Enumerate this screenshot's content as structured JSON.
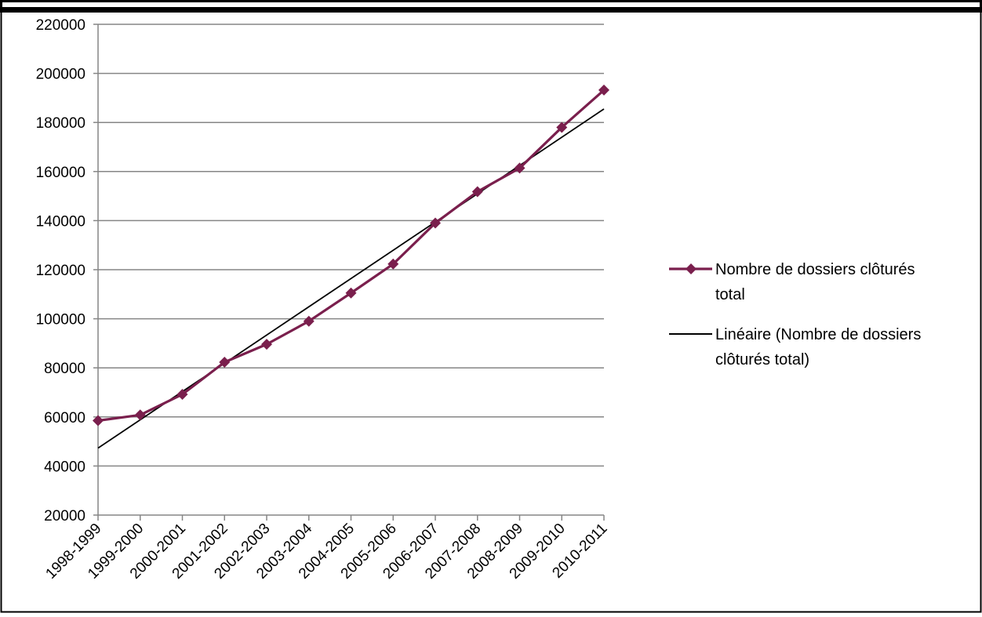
{
  "chart_data": {
    "type": "line",
    "categories": [
      "1998-1999",
      "1999-2000",
      "2000-2001",
      "2001-2002",
      "2002-2003",
      "2003-2004",
      "2004-2005",
      "2005-2006",
      "2006-2007",
      "2007-2008",
      "2008-2009",
      "2009-2010",
      "2010-2011"
    ],
    "series": [
      {
        "name": "Nombre de dossiers clôturés total",
        "values": [
          58500,
          60800,
          69200,
          82300,
          89600,
          99000,
          110500,
          122300,
          139000,
          151800,
          161400,
          178000,
          193200
        ],
        "color": "#7a1f4d",
        "marker": "diamond"
      }
    ],
    "trendline": {
      "name": "Linéaire (Nombre de dossiers clôturés total)",
      "start": 47300,
      "end": 185500,
      "color": "#000000"
    },
    "legend": {
      "series_lines": [
        "Nombre de dossiers clôturés",
        "total"
      ],
      "trend_lines": [
        "Linéaire (Nombre de dossiers",
        "clôturés total)"
      ],
      "position": "right"
    },
    "ylim": [
      20000,
      220000
    ],
    "yticks": [
      220000,
      200000,
      180000,
      160000,
      140000,
      120000,
      100000,
      80000,
      60000,
      40000,
      20000
    ],
    "grid": true
  }
}
